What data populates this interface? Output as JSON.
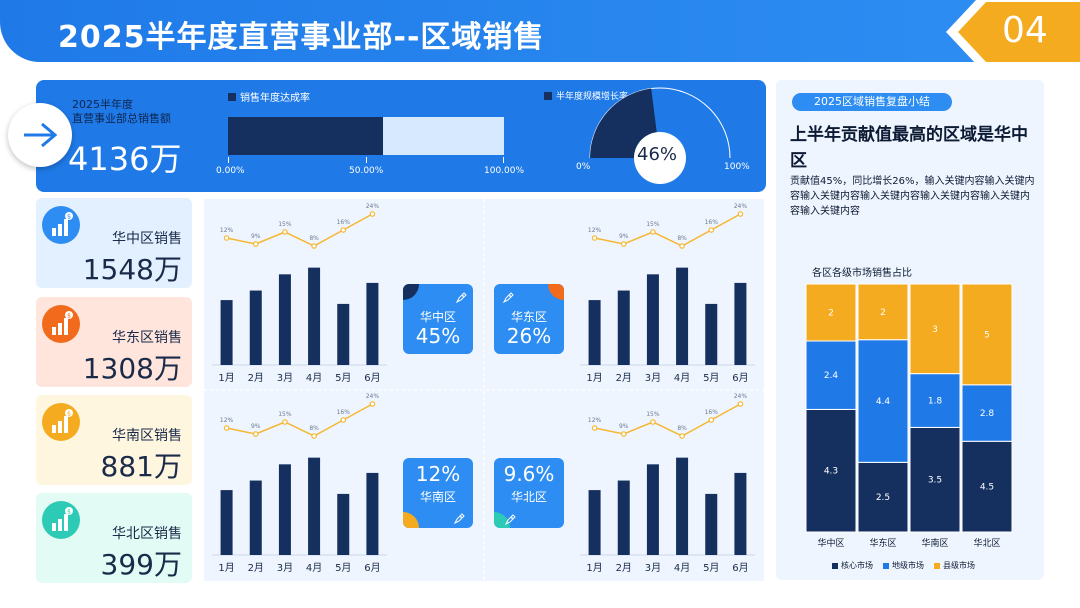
{
  "header": {
    "title": "2025半年度直营事业部--区域销售",
    "page_number": "04"
  },
  "summary": {
    "label": "2025半年度\n直营事业部总销售额",
    "total": "4136万",
    "rate_legend": "销售年度达成率",
    "rate_value": 0.56,
    "rate_ticks": [
      "0.00%",
      "50.00%",
      "100.00%"
    ],
    "growth_legend": "半年度规模增长率",
    "growth_value": 0.46,
    "growth_label": "46%",
    "gauge_min": "0%",
    "gauge_max": "100%"
  },
  "regions": [
    {
      "name": "华中区销售",
      "value": "1548万",
      "bg": "#e3f0ff",
      "icon": "#2d8df2"
    },
    {
      "name": "华东区销售",
      "value": "1308万",
      "bg": "#ffe5dc",
      "icon": "#f26a1b"
    },
    {
      "name": "华南区销售",
      "value": "881万",
      "bg": "#fff6e0",
      "icon": "#f5ab1f"
    },
    {
      "name": "华北区销售",
      "value": "399万",
      "bg": "#e3fbf5",
      "icon": "#2dcbb5"
    }
  ],
  "tiles": [
    {
      "name": "华中区",
      "pct": "45%"
    },
    {
      "name": "华东区",
      "pct": "26%"
    },
    {
      "name": "华南区",
      "pct": "12%"
    },
    {
      "name": "华北区",
      "pct": "9.6%"
    }
  ],
  "right": {
    "tag": "2025区域销售复盘小结",
    "headline": "上半年贡献值最高的区域是华中区",
    "desc": "贡献值45%，同比增长26%，输入关键内容输入关键内容输入关键内容输入关键内容输入关键内容输入关键内容输入关键内容",
    "stack_title": "各区各级市场销售占比"
  },
  "colors": {
    "navy": "#152f5e",
    "blue": "#1f7ae8",
    "orange": "#f5ab1f",
    "line": "#f5b731"
  },
  "chart_data": [
    {
      "type": "bar",
      "categories": [
        "1月",
        "2月",
        "3月",
        "4月",
        "5月",
        "6月"
      ],
      "values": [
        68,
        78,
        95,
        102,
        64,
        86
      ],
      "line_values": [
        12,
        9,
        15,
        8,
        16,
        24
      ],
      "line_labels": [
        "12%",
        "9%",
        "15%",
        "8%",
        "16%",
        "24%"
      ]
    },
    {
      "type": "bar",
      "categories": [
        "1月",
        "2月",
        "3月",
        "4月",
        "5月",
        "6月"
      ],
      "values": [
        68,
        78,
        95,
        102,
        64,
        86
      ],
      "line_values": [
        12,
        9,
        15,
        8,
        16,
        24
      ],
      "line_labels": [
        "12%",
        "9%",
        "15%",
        "8%",
        "16%",
        "24%"
      ]
    },
    {
      "type": "bar",
      "categories": [
        "1月",
        "2月",
        "3月",
        "4月",
        "5月",
        "6月"
      ],
      "values": [
        68,
        78,
        95,
        102,
        64,
        86
      ],
      "line_values": [
        12,
        9,
        15,
        8,
        16,
        24
      ],
      "line_labels": [
        "12%",
        "9%",
        "15%",
        "8%",
        "16%",
        "24%"
      ]
    },
    {
      "type": "bar",
      "categories": [
        "1月",
        "2月",
        "3月",
        "4月",
        "5月",
        "6月"
      ],
      "values": [
        68,
        78,
        95,
        102,
        64,
        86
      ],
      "line_values": [
        12,
        9,
        15,
        8,
        16,
        24
      ],
      "line_labels": [
        "12%",
        "9%",
        "15%",
        "8%",
        "16%",
        "24%"
      ]
    },
    {
      "type": "bar",
      "title": "各区各级市场销售占比",
      "stacked": true,
      "categories": [
        "华中区",
        "华东区",
        "华南区",
        "华北区"
      ],
      "series": [
        {
          "name": "核心市场",
          "values": [
            4.3,
            2.5,
            3.5,
            4.5
          ],
          "color": "#152f5e"
        },
        {
          "name": "地级市场",
          "values": [
            2.4,
            4.4,
            1.8,
            2.8
          ],
          "color": "#1f7ae8"
        },
        {
          "name": "县级市场",
          "values": [
            2,
            2,
            3,
            5
          ],
          "color": "#f5ab1f"
        }
      ]
    }
  ]
}
